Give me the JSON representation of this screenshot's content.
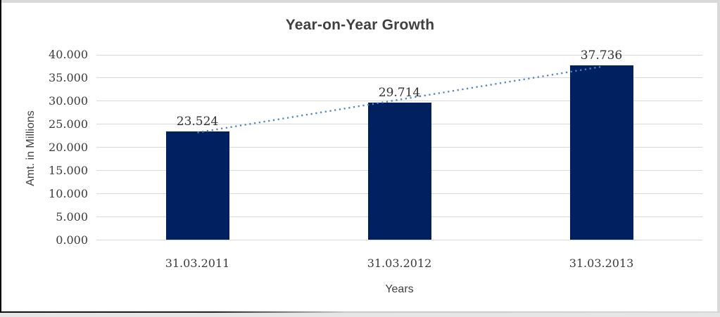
{
  "chart_data": {
    "type": "bar",
    "title": "Year-on-Year Growth",
    "xlabel": "Years",
    "ylabel": "Amt. in Millions",
    "categories": [
      "31.03.2011",
      "31.03.2012",
      "31.03.2013"
    ],
    "values": [
      23.524,
      29.714,
      37.736
    ],
    "value_labels": [
      "23.524",
      "29.714",
      "37.736"
    ],
    "ylim": [
      0,
      40
    ],
    "ytick_step": 5,
    "ytick_labels": [
      "0.000",
      "5.000",
      "10.000",
      "15.000",
      "20.000",
      "25.000",
      "30.000",
      "35.000",
      "40.000"
    ],
    "grid": true,
    "legend": "none",
    "colors": {
      "bar": "#002060",
      "trendline": "#4e86c8",
      "gridline": "#d9d9d9",
      "title_text": "#404040",
      "axis_text": "#3b3b3b"
    },
    "trendline": {
      "type": "linear",
      "style": "dotted"
    }
  }
}
